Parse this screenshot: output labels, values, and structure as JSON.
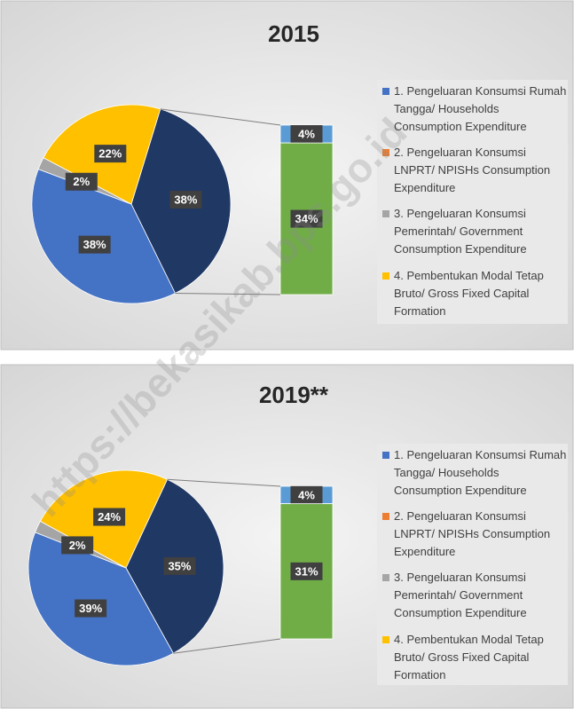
{
  "chart_data": [
    {
      "type": "pie",
      "title": "2015",
      "values": [
        38,
        38,
        2,
        22
      ],
      "value_labels": [
        "38%",
        "38%",
        "2%",
        "22%"
      ],
      "colors": [
        "#203864",
        "#4472c4",
        "#a5a5a5",
        "#ffc000"
      ],
      "bar_values": [
        4,
        34
      ],
      "bar_value_labels": [
        "4%",
        "34%"
      ],
      "bar_colors": [
        "#5b9bd5",
        "#70ad47"
      ],
      "legend": [
        {
          "name": "1. Pengeluaran Konsumsi Rumah Tangga/ Households Consumption Expenditure",
          "color": "#4472c4"
        },
        {
          "name": "2. Pengeluaran Konsumsi LNPRT/ NPISHs Consumption Expenditure",
          "color": "#ed7d31"
        },
        {
          "name": "3. Pengeluaran Konsumsi Pemerintah/ Government Consumption Expenditure",
          "color": "#a5a5a5"
        },
        {
          "name": "4. Pembentukan Modal Tetap Bruto/ Gross Fixed Capital Formation",
          "color": "#ffc000"
        }
      ]
    },
    {
      "type": "pie",
      "title": "2019**",
      "values": [
        35,
        39,
        2,
        24
      ],
      "value_labels": [
        "35%",
        "39%",
        "2%",
        "24%"
      ],
      "colors": [
        "#203864",
        "#4472c4",
        "#a5a5a5",
        "#ffc000"
      ],
      "bar_values": [
        4,
        31
      ],
      "bar_value_labels": [
        "4%",
        "31%"
      ],
      "bar_colors": [
        "#5b9bd5",
        "#70ad47"
      ],
      "legend": [
        {
          "name": "1. Pengeluaran Konsumsi Rumah Tangga/ Households Consumption Expenditure",
          "color": "#4472c4"
        },
        {
          "name": "2. Pengeluaran Konsumsi LNPRT/ NPISHs Consumption Expenditure",
          "color": "#ed7d31"
        },
        {
          "name": "3. Pengeluaran Konsumsi Pemerintah/ Government Consumption Expenditure",
          "color": "#a5a5a5"
        },
        {
          "name": "4. Pembentukan Modal Tetap Bruto/ Gross Fixed Capital Formation",
          "color": "#ffc000"
        }
      ]
    }
  ],
  "watermark": "https://bekasikab.bps.go.id"
}
